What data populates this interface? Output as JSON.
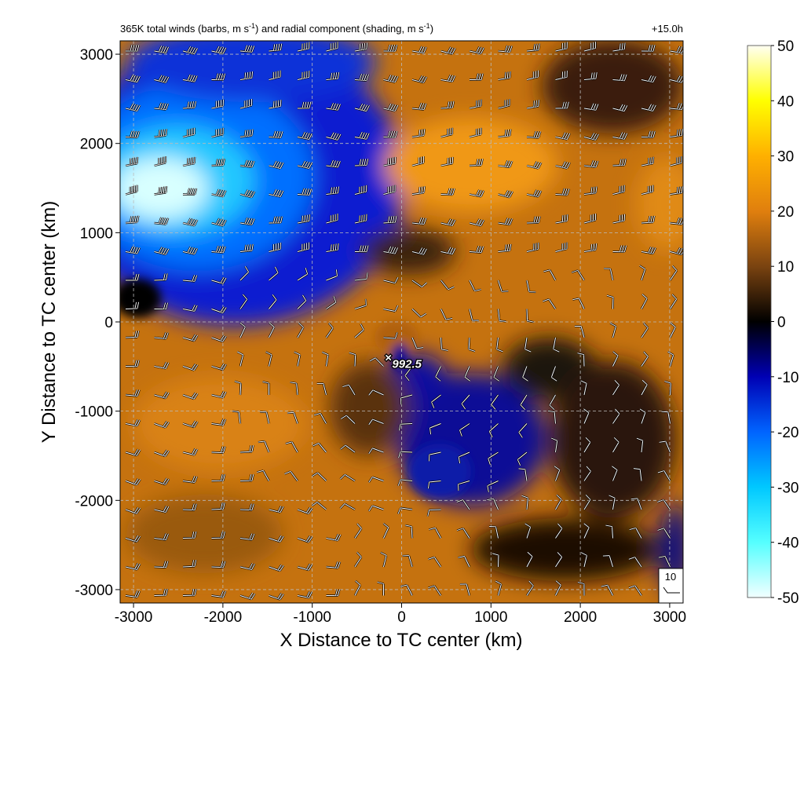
{
  "title": {
    "main": "365K total winds (barbs, m s",
    "sup1": "-1",
    "mid": ") and radial component (shading, m s",
    "sup2": "-1",
    "end": ")"
  },
  "valid_time": "+15.0h",
  "center_label": "992.5",
  "center_marker": "×",
  "reference_barb_label": "10",
  "chart_data": {
    "type": "heatmap",
    "xlabel": "X Distance to TC center (km)",
    "ylabel": "Y Distance to TC center (km)",
    "xlim": [
      -3150,
      3150
    ],
    "ylim": [
      -3150,
      3150
    ],
    "x_ticks": [
      -3000,
      -2000,
      -1000,
      0,
      1000,
      2000,
      3000
    ],
    "y_ticks": [
      3000,
      2000,
      1000,
      0,
      -1000,
      -2000,
      -3000
    ],
    "grid": true,
    "colorbar": {
      "min": -50,
      "max": 50,
      "ticks": [
        50,
        40,
        30,
        20,
        10,
        0,
        -10,
        -20,
        -30,
        -40,
        -50
      ],
      "colors": [
        {
          "value": -50,
          "color": "#f2ffff"
        },
        {
          "value": -40,
          "color": "#55ffff"
        },
        {
          "value": -30,
          "color": "#00c8ff"
        },
        {
          "value": -20,
          "color": "#0064ff"
        },
        {
          "value": -10,
          "color": "#0000b4"
        },
        {
          "value": 0,
          "color": "#000000"
        },
        {
          "value": 10,
          "color": "#7a4310"
        },
        {
          "value": 20,
          "color": "#e07f0e"
        },
        {
          "value": 30,
          "color": "#ffb000"
        },
        {
          "value": 40,
          "color": "#ffff00"
        },
        {
          "value": 50,
          "color": "#fffff2"
        }
      ]
    },
    "center": {
      "x": -150,
      "y": -400,
      "pressure": "992.5"
    }
  }
}
